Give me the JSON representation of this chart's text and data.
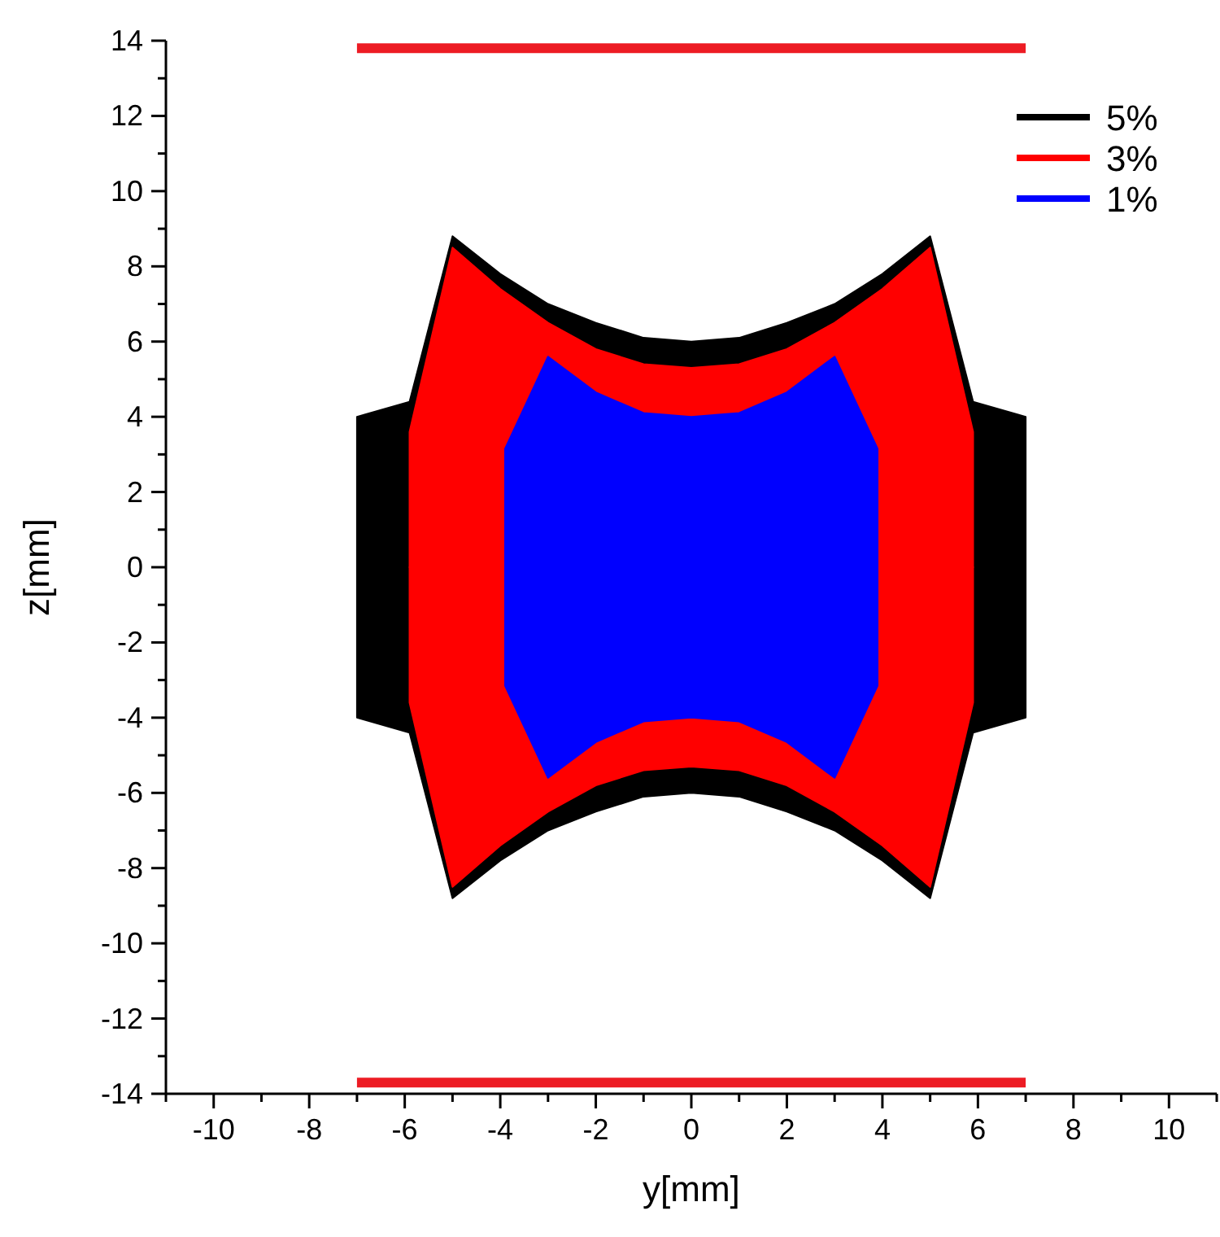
{
  "chart_data": {
    "type": "area",
    "xlabel": "y[mm]",
    "ylabel": "z[mm]",
    "xlim": [
      -11,
      11
    ],
    "ylim": [
      -14,
      14
    ],
    "xticks": [
      {
        "value": -11,
        "label": null
      },
      -10,
      {
        "value": -9,
        "label": null
      },
      -8,
      {
        "value": -7,
        "label": null
      },
      -6,
      {
        "value": -5,
        "label": null
      },
      -4,
      {
        "value": -3,
        "label": null
      },
      -2,
      {
        "value": -1,
        "label": null
      },
      0,
      {
        "value": 1,
        "label": null
      },
      2,
      {
        "value": 3,
        "label": null
      },
      4,
      {
        "value": 5,
        "label": null
      },
      6,
      {
        "value": 7,
        "label": null
      },
      8,
      {
        "value": 9,
        "label": null
      },
      10,
      {
        "value": 11,
        "label": null
      }
    ],
    "yticks": [
      -14,
      {
        "value": -13,
        "label": null
      },
      -12,
      {
        "value": -11,
        "label": null
      },
      -10,
      {
        "value": -9,
        "label": null
      },
      -8,
      {
        "value": -7,
        "label": null
      },
      -6,
      {
        "value": -5,
        "label": null
      },
      -4,
      {
        "value": -3,
        "label": null
      },
      -2,
      {
        "value": -1,
        "label": null
      },
      0,
      {
        "value": 1,
        "label": null
      },
      2,
      {
        "value": 3,
        "label": null
      },
      4,
      {
        "value": 5,
        "label": null
      },
      6,
      {
        "value": 7,
        "label": null
      },
      8,
      {
        "value": 9,
        "label": null
      },
      10,
      {
        "value": 11,
        "label": null
      },
      12,
      {
        "value": 13,
        "label": null
      },
      14
    ],
    "legend": "top right",
    "grid": false,
    "series": [
      {
        "name": "5%",
        "color": "#000000",
        "x": [
          -7,
          -5.9,
          -5,
          -4,
          -3,
          -2,
          -1,
          0,
          1,
          2,
          3,
          4,
          5,
          5.9,
          7
        ],
        "values": [
          4,
          4.4,
          8.8,
          7.8,
          7,
          6.5,
          6.1,
          6,
          6.1,
          6.5,
          7,
          7.8,
          8.8,
          4.4,
          4
        ]
      },
      {
        "color": "#000000",
        "x": [
          -7,
          -5.9,
          -5,
          -4,
          -3,
          -2,
          -1,
          0,
          1,
          2,
          3,
          4,
          5,
          5.9,
          7
        ],
        "values": [
          -4,
          -4.4,
          -8.8,
          -7.8,
          -7,
          -6.5,
          -6.1,
          -6,
          -6.1,
          -6.5,
          -7,
          -7.8,
          -8.8,
          -4.4,
          -4
        ]
      },
      {
        "name": "3%",
        "color": "#ff0000",
        "x": [
          -5.9,
          -5,
          -4,
          -3,
          -2,
          -1,
          0,
          1,
          2,
          3,
          4,
          5,
          5.9
        ],
        "values": [
          3.6,
          8.5,
          7.4,
          6.5,
          5.8,
          5.4,
          5.3,
          5.4,
          5.8,
          6.5,
          7.4,
          8.5,
          3.6
        ]
      },
      {
        "color": "#ff0000",
        "x": [
          -5.9,
          -5,
          -4,
          -3,
          -2,
          -1,
          0,
          1,
          2,
          3,
          4,
          5,
          5.9
        ],
        "values": [
          -3.6,
          -8.5,
          -7.4,
          -6.5,
          -5.8,
          -5.4,
          -5.3,
          -5.4,
          -5.8,
          -6.5,
          -7.4,
          -8.5,
          -3.6
        ]
      },
      {
        "name": "1%",
        "color": "#0000ff",
        "x": [
          -3.9,
          -3,
          -2,
          -1,
          0,
          1,
          2,
          3,
          3.9
        ],
        "values": [
          3.15,
          5.6,
          4.65,
          4.1,
          4,
          4.1,
          4.65,
          5.6,
          3.15
        ]
      },
      {
        "color": "#0000ff",
        "x": [
          -3.9,
          -3,
          -2,
          -1,
          0,
          1,
          2,
          3,
          3.9
        ],
        "values": [
          -3.15,
          -5.6,
          -4.65,
          -4.1,
          -4,
          -4.1,
          -4.65,
          -5.6,
          -3.15
        ]
      },
      {
        "type": "line",
        "color": "#ed1c24",
        "x": [
          -7,
          7
        ],
        "values": [
          13.8,
          13.8
        ]
      },
      {
        "type": "line",
        "color": "#ed1c24",
        "x": [
          -7,
          7
        ],
        "values": [
          -13.7,
          -13.7
        ]
      }
    ]
  }
}
